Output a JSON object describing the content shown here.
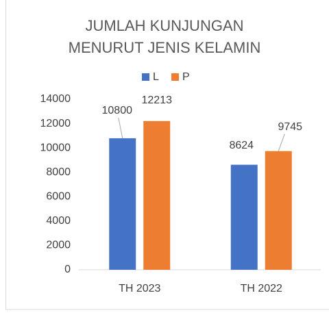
{
  "chart_data": {
    "type": "bar",
    "title": "JUMLAH KUNJUNGAN MENURUT JENIS KELAMIN",
    "categories": [
      "TH 2023",
      "TH 2022"
    ],
    "series": [
      {
        "name": "L",
        "color": "#4472c4",
        "values": [
          10800,
          8624
        ]
      },
      {
        "name": "P",
        "color": "#ed7d31",
        "values": [
          12213,
          9745
        ]
      }
    ],
    "ylim": [
      0,
      14000
    ],
    "yticks": [
      0,
      2000,
      4000,
      6000,
      8000,
      10000,
      12000,
      14000
    ],
    "grid": false,
    "legend": "top"
  }
}
